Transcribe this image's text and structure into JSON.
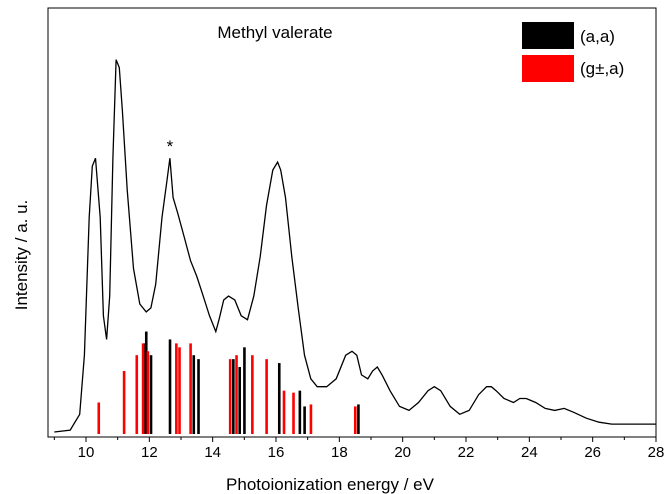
{
  "chart_data": {
    "type": "line",
    "title": "Methyl valerate",
    "xlabel": "Photoionization energy / eV",
    "ylabel": "Intensity / a. u.",
    "xlim": [
      8.8,
      28
    ],
    "ylim": [
      0,
      1
    ],
    "xticks": [
      10,
      12,
      14,
      16,
      18,
      20,
      22,
      24,
      26,
      28
    ],
    "annotation": {
      "text": "*",
      "x": 12.65,
      "y": 0.705
    },
    "legend_position": "top-right",
    "spectrum": {
      "x": [
        9.0,
        9.5,
        9.8,
        9.95,
        10.1,
        10.2,
        10.3,
        10.45,
        10.55,
        10.65,
        10.75,
        10.85,
        10.95,
        11.05,
        11.15,
        11.3,
        11.5,
        11.7,
        11.9,
        12.05,
        12.2,
        12.4,
        12.55,
        12.65,
        12.75,
        12.9,
        13.1,
        13.3,
        13.5,
        13.7,
        13.9,
        14.1,
        14.2,
        14.35,
        14.5,
        14.7,
        14.9,
        15.1,
        15.3,
        15.5,
        15.7,
        15.9,
        16.05,
        16.15,
        16.3,
        16.5,
        16.7,
        16.9,
        17.1,
        17.3,
        17.6,
        17.9,
        18.2,
        18.4,
        18.55,
        18.7,
        18.9,
        19.05,
        19.2,
        19.35,
        19.6,
        19.9,
        20.2,
        20.5,
        20.8,
        21.0,
        21.2,
        21.5,
        21.8,
        22.1,
        22.4,
        22.65,
        22.8,
        22.95,
        23.2,
        23.5,
        23.7,
        23.9,
        24.2,
        24.5,
        24.8,
        25.1,
        25.4,
        25.8,
        26.2,
        26.6,
        27.0,
        27.5,
        28.0
      ],
      "y": [
        0.005,
        0.01,
        0.05,
        0.2,
        0.55,
        0.68,
        0.7,
        0.55,
        0.3,
        0.24,
        0.35,
        0.7,
        0.95,
        0.93,
        0.82,
        0.62,
        0.42,
        0.33,
        0.31,
        0.32,
        0.38,
        0.55,
        0.64,
        0.7,
        0.6,
        0.56,
        0.5,
        0.44,
        0.4,
        0.35,
        0.3,
        0.26,
        0.29,
        0.34,
        0.35,
        0.34,
        0.3,
        0.29,
        0.35,
        0.45,
        0.58,
        0.67,
        0.69,
        0.67,
        0.6,
        0.45,
        0.32,
        0.2,
        0.14,
        0.12,
        0.12,
        0.14,
        0.2,
        0.21,
        0.2,
        0.15,
        0.14,
        0.16,
        0.17,
        0.15,
        0.11,
        0.07,
        0.06,
        0.08,
        0.11,
        0.12,
        0.11,
        0.07,
        0.05,
        0.06,
        0.1,
        0.12,
        0.12,
        0.11,
        0.09,
        0.08,
        0.09,
        0.09,
        0.08,
        0.065,
        0.06,
        0.065,
        0.055,
        0.04,
        0.03,
        0.025,
        0.025,
        0.025,
        0.025
      ]
    },
    "series": [
      {
        "name": "(a,a)",
        "color": "#000000",
        "x": [
          11.85,
          11.9,
          12.05,
          12.65,
          13.4,
          13.55,
          14.65,
          14.85,
          15.0,
          16.1,
          16.75,
          16.9,
          18.6
        ],
        "values": [
          0.23,
          0.26,
          0.2,
          0.24,
          0.2,
          0.19,
          0.19,
          0.17,
          0.22,
          0.18,
          0.11,
          0.07,
          0.075
        ]
      },
      {
        "name": "(g±,a)",
        "color": "#ff0000",
        "x": [
          10.4,
          11.2,
          11.6,
          11.8,
          11.95,
          12.85,
          12.95,
          13.3,
          14.55,
          14.75,
          15.25,
          15.7,
          16.25,
          16.55,
          17.1,
          18.5
        ],
        "values": [
          0.08,
          0.16,
          0.2,
          0.23,
          0.21,
          0.23,
          0.22,
          0.23,
          0.19,
          0.2,
          0.2,
          0.19,
          0.11,
          0.105,
          0.075,
          0.07
        ]
      }
    ]
  }
}
